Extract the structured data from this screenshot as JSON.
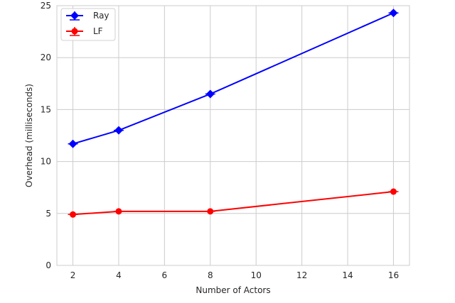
{
  "chart_data": {
    "type": "line",
    "title": "",
    "xlabel": "Number of Actors",
    "ylabel": "Overhead (milliseconds)",
    "xlim": [
      1.3,
      16.7
    ],
    "ylim": [
      0,
      25
    ],
    "xticks": [
      2,
      4,
      6,
      8,
      10,
      12,
      14,
      16
    ],
    "yticks": [
      0,
      5,
      10,
      15,
      20,
      25
    ],
    "grid": true,
    "legend_position": "top-left",
    "series": [
      {
        "name": "Ray",
        "color": "#0000ff",
        "marker": "diamond",
        "x": [
          2,
          4,
          8,
          16
        ],
        "y": [
          11.7,
          13.0,
          16.5,
          24.3
        ]
      },
      {
        "name": "LF",
        "color": "#ff0000",
        "marker": "circle",
        "x": [
          2,
          4,
          8,
          16
        ],
        "y": [
          4.9,
          5.2,
          5.2,
          7.1
        ]
      }
    ]
  }
}
